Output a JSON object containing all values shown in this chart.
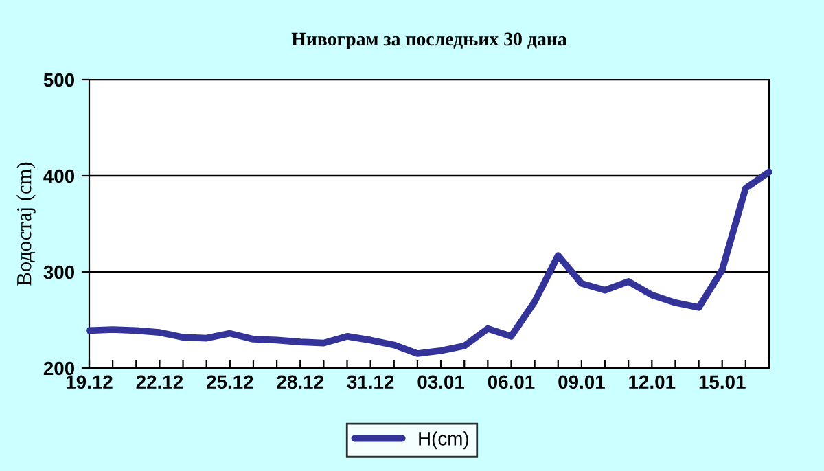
{
  "chart_data": {
    "type": "line",
    "title": "Нивограм за последњих 30 дана",
    "ylabel": "Водостај (cm)",
    "categories": [
      "19.12",
      null,
      null,
      "22.12",
      null,
      null,
      "25.12",
      null,
      null,
      "28.12",
      null,
      null,
      "31.12",
      null,
      null,
      "03.01",
      null,
      null,
      "06.01",
      null,
      null,
      "09.01",
      null,
      null,
      "12.01",
      null,
      null,
      "15.01",
      null,
      null
    ],
    "series": [
      {
        "name": "H(cm)",
        "color": "#333399",
        "values": [
          239,
          240,
          239,
          237,
          232,
          231,
          236,
          230,
          229,
          227,
          226,
          233,
          229,
          224,
          215,
          218,
          223,
          241,
          233,
          269,
          317,
          288,
          281,
          290,
          276,
          268,
          263,
          302,
          387,
          404
        ]
      }
    ],
    "ylim": [
      200,
      500
    ],
    "yticks": [
      200,
      300,
      400,
      500
    ],
    "grid": "y",
    "legend": "bottom",
    "marker": "none",
    "line_style": "solid"
  }
}
